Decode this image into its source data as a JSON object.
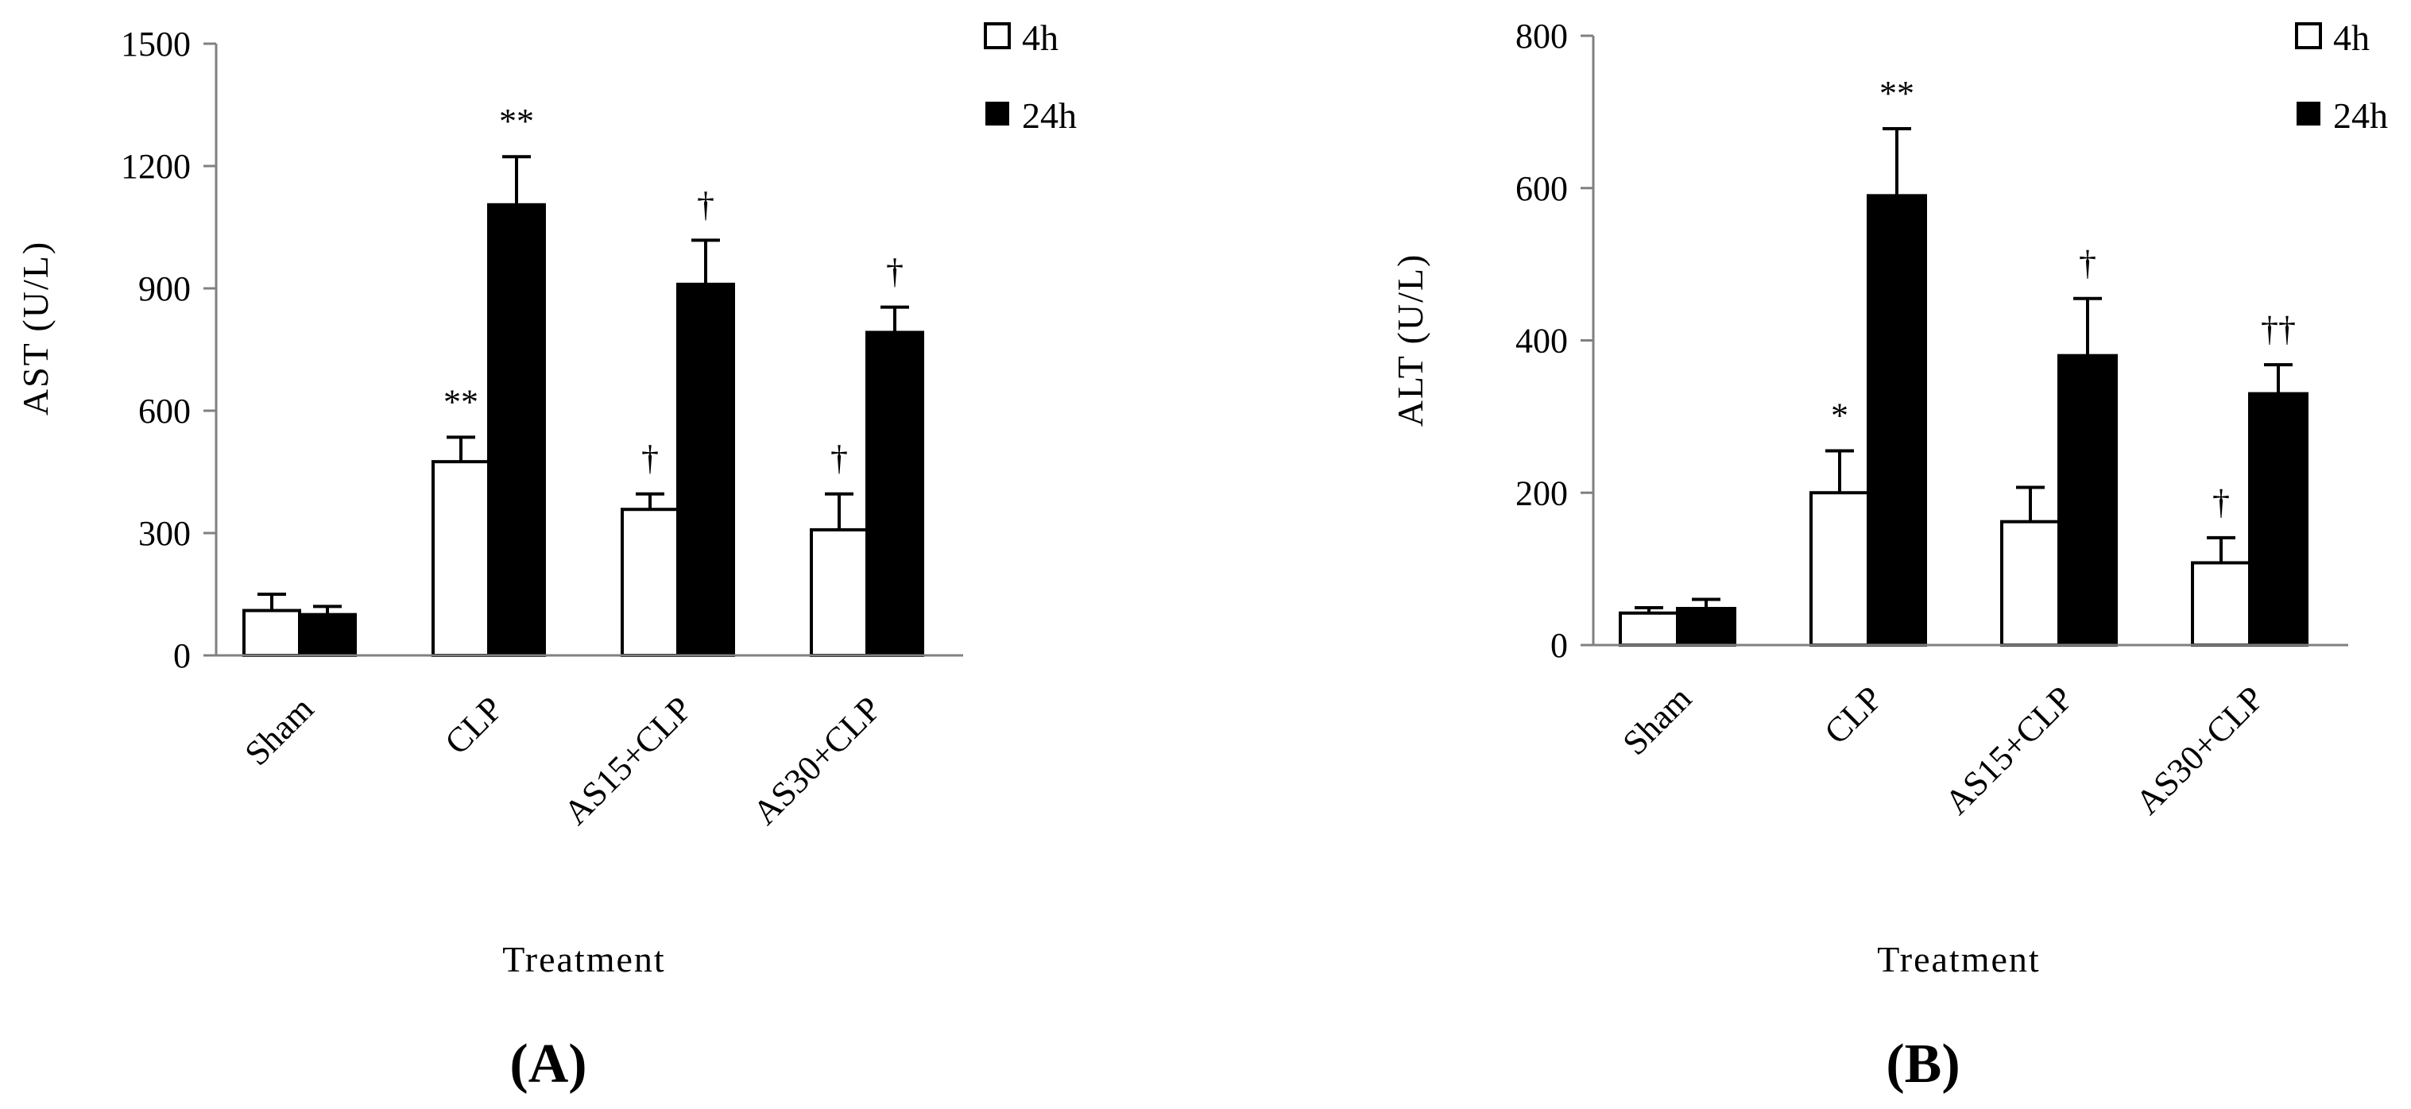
{
  "colors": {
    "h4_fill": "#ffffff",
    "h24_fill": "#000000",
    "axis": "#808080",
    "ink": "#000000"
  },
  "chart_data": [
    {
      "type": "bar",
      "panel_label": "(A)",
      "ylabel": "AST (U/L)",
      "xlabel": "Treatment",
      "ylim": [
        0,
        1500
      ],
      "yticks": [
        "0",
        "300",
        "600",
        "900",
        "1200",
        "1500"
      ],
      "categories": [
        "Sham",
        "CLP",
        "AS15+CLP",
        "AS30+CLP"
      ],
      "legend": [
        "4h",
        "24h"
      ],
      "legend_position": "top-right",
      "grid": false,
      "series": [
        {
          "name": "4h",
          "values": [
            110,
            475,
            358,
            308
          ],
          "errors": [
            40,
            60,
            38,
            88
          ],
          "marks": [
            "",
            "**",
            "†",
            "†"
          ]
        },
        {
          "name": "24h",
          "values": [
            100,
            1105,
            910,
            792
          ],
          "errors": [
            20,
            118,
            108,
            62
          ],
          "marks": [
            "",
            "**",
            "†",
            "†"
          ]
        }
      ]
    },
    {
      "type": "bar",
      "panel_label": "(B)",
      "ylabel": "ALT (U/L)",
      "xlabel": "Treatment",
      "ylim": [
        0,
        800
      ],
      "yticks": [
        "0",
        "200",
        "400",
        "600",
        "800"
      ],
      "categories": [
        "Sham",
        "CLP",
        "AS15+CLP",
        "AS30+CLP"
      ],
      "legend": [
        "4h",
        "24h"
      ],
      "legend_position": "top-right",
      "grid": false,
      "series": [
        {
          "name": "4h",
          "values": [
            42,
            200,
            162,
            108
          ],
          "errors": [
            7,
            55,
            45,
            33
          ],
          "marks": [
            "",
            "*",
            "",
            "†"
          ]
        },
        {
          "name": "24h",
          "values": [
            48,
            590,
            380,
            330
          ],
          "errors": [
            12,
            88,
            75,
            38
          ],
          "marks": [
            "",
            "**",
            "†",
            "††"
          ]
        }
      ]
    }
  ]
}
